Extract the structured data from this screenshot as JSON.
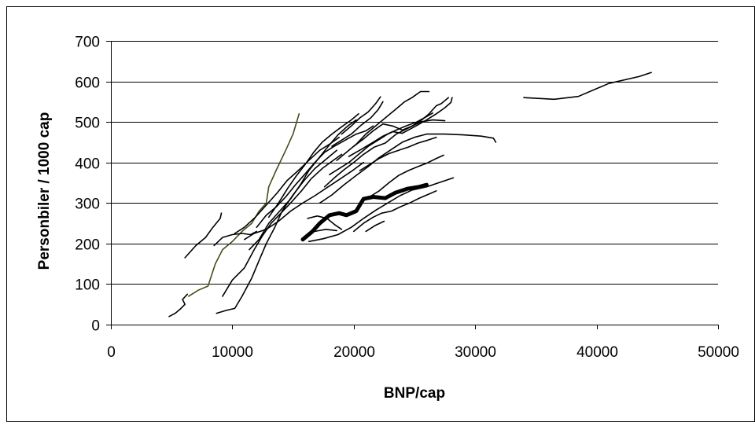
{
  "chart_data": {
    "type": "line",
    "xlabel": "BNP/cap",
    "ylabel": "Personbiler / 1000 cap",
    "xlim": [
      0,
      50000
    ],
    "ylim": [
      0,
      700
    ],
    "xticks": [
      "0",
      "10000",
      "20000",
      "30000",
      "40000",
      "50000"
    ],
    "yticks": [
      "0",
      "100",
      "200",
      "300",
      "400",
      "500",
      "600",
      "700"
    ],
    "grid": "horizontal",
    "legend": "none",
    "colors": {
      "default": "#000000",
      "olive": "#4a4a1a",
      "gridline": "#000000"
    },
    "series": [
      {
        "values": [
          [
            34000,
            560
          ],
          [
            36500,
            556
          ],
          [
            38500,
            563
          ],
          [
            41000,
            595
          ],
          [
            43500,
            612
          ],
          [
            44500,
            622
          ]
        ]
      },
      {
        "color": "olive",
        "values": [
          [
            6400,
            70
          ],
          [
            7200,
            85
          ],
          [
            8000,
            95
          ],
          [
            8600,
            150
          ],
          [
            9200,
            185
          ],
          [
            10000,
            205
          ],
          [
            10800,
            230
          ],
          [
            11600,
            250
          ],
          [
            12200,
            280
          ],
          [
            12800,
            300
          ],
          [
            13000,
            340
          ],
          [
            13600,
            380
          ],
          [
            14400,
            430
          ],
          [
            15000,
            470
          ],
          [
            15500,
            520
          ]
        ]
      },
      {
        "width": 5,
        "values": [
          [
            15800,
            210
          ],
          [
            16600,
            230
          ],
          [
            17200,
            250
          ],
          [
            18000,
            270
          ],
          [
            18800,
            275
          ],
          [
            19400,
            270
          ],
          [
            20200,
            280
          ],
          [
            20800,
            310
          ],
          [
            21600,
            315
          ],
          [
            22600,
            312
          ],
          [
            23400,
            325
          ],
          [
            24400,
            335
          ],
          [
            25400,
            340
          ],
          [
            26000,
            345
          ]
        ]
      },
      {
        "values": [
          [
            4800,
            20
          ],
          [
            5300,
            28
          ],
          [
            5700,
            38
          ],
          [
            6100,
            50
          ],
          [
            5900,
            62
          ],
          [
            6300,
            75
          ]
        ]
      },
      {
        "values": [
          [
            6100,
            165
          ],
          [
            7000,
            195
          ],
          [
            7800,
            215
          ],
          [
            8400,
            240
          ],
          [
            9000,
            262
          ],
          [
            9100,
            275
          ]
        ]
      },
      {
        "values": [
          [
            8500,
            195
          ],
          [
            9200,
            215
          ],
          [
            10000,
            222
          ],
          [
            10800,
            225
          ],
          [
            11500,
            222
          ],
          [
            12000,
            230
          ]
        ]
      },
      {
        "values": [
          [
            8700,
            28
          ],
          [
            9500,
            35
          ],
          [
            10200,
            40
          ],
          [
            10800,
            70
          ],
          [
            11600,
            115
          ],
          [
            12300,
            165
          ],
          [
            12800,
            200
          ],
          [
            13500,
            240
          ],
          [
            14100,
            280
          ],
          [
            15000,
            320
          ],
          [
            15900,
            355
          ],
          [
            16800,
            385
          ],
          [
            17800,
            410
          ],
          [
            18600,
            430
          ]
        ]
      },
      {
        "values": [
          [
            9200,
            70
          ],
          [
            10000,
            110
          ],
          [
            11000,
            140
          ],
          [
            11800,
            185
          ],
          [
            12500,
            220
          ],
          [
            13200,
            250
          ],
          [
            14000,
            275
          ],
          [
            14800,
            300
          ],
          [
            15700,
            330
          ],
          [
            16500,
            360
          ],
          [
            17400,
            385
          ],
          [
            18300,
            405
          ],
          [
            19000,
            420
          ]
        ]
      },
      {
        "values": [
          [
            10200,
            225
          ],
          [
            11000,
            240
          ],
          [
            11900,
            265
          ],
          [
            12800,
            295
          ],
          [
            13700,
            325
          ],
          [
            14500,
            355
          ],
          [
            15500,
            382
          ],
          [
            16300,
            405
          ],
          [
            17200,
            430
          ],
          [
            18000,
            445
          ],
          [
            18800,
            462
          ]
        ]
      },
      {
        "values": [
          [
            11000,
            210
          ],
          [
            11800,
            225
          ],
          [
            12800,
            235
          ],
          [
            13800,
            255
          ],
          [
            14800,
            280
          ],
          [
            15800,
            300
          ],
          [
            16800,
            318
          ],
          [
            17800,
            338
          ],
          [
            18800,
            358
          ],
          [
            19800,
            378
          ],
          [
            20800,
            400
          ]
        ]
      },
      {
        "values": [
          [
            11400,
            185
          ],
          [
            12200,
            210
          ],
          [
            13000,
            250
          ],
          [
            13900,
            280
          ],
          [
            14800,
            310
          ],
          [
            15600,
            345
          ],
          [
            16300,
            380
          ],
          [
            17100,
            410
          ],
          [
            17900,
            440
          ],
          [
            18700,
            468
          ],
          [
            19500,
            490
          ],
          [
            20200,
            505
          ]
        ]
      },
      {
        "values": [
          [
            12000,
            240
          ],
          [
            12800,
            270
          ],
          [
            13600,
            290
          ],
          [
            14400,
            315
          ],
          [
            15200,
            345
          ],
          [
            16000,
            372
          ],
          [
            16800,
            400
          ],
          [
            17600,
            425
          ],
          [
            18400,
            440
          ],
          [
            19300,
            455
          ],
          [
            20200,
            470
          ],
          [
            21000,
            478
          ],
          [
            21600,
            490
          ]
        ]
      },
      {
        "values": [
          [
            13000,
            265
          ],
          [
            13800,
            300
          ],
          [
            14600,
            338
          ],
          [
            15300,
            368
          ],
          [
            16000,
            395
          ],
          [
            16700,
            425
          ],
          [
            17400,
            450
          ],
          [
            18200,
            470
          ],
          [
            19000,
            488
          ],
          [
            19800,
            505
          ],
          [
            20400,
            520
          ]
        ]
      },
      {
        "values": [
          [
            16200,
            262
          ],
          [
            17000,
            268
          ],
          [
            17800,
            262
          ],
          [
            18500,
            245
          ],
          [
            19000,
            235
          ]
        ]
      },
      {
        "values": [
          [
            16300,
            205
          ],
          [
            17500,
            212
          ],
          [
            18700,
            222
          ],
          [
            19800,
            240
          ],
          [
            20800,
            262
          ],
          [
            21800,
            282
          ],
          [
            22800,
            300
          ],
          [
            23800,
            318
          ],
          [
            24800,
            332
          ],
          [
            26000,
            340
          ],
          [
            27000,
            350
          ],
          [
            28200,
            362
          ]
        ]
      },
      {
        "values": [
          [
            16800,
            230
          ],
          [
            17700,
            235
          ],
          [
            18600,
            232
          ]
        ]
      },
      {
        "values": [
          [
            17200,
            300
          ],
          [
            18200,
            320
          ],
          [
            19200,
            345
          ],
          [
            20200,
            368
          ],
          [
            21200,
            390
          ],
          [
            22000,
            410
          ],
          [
            23000,
            430
          ],
          [
            24000,
            450
          ],
          [
            25000,
            462
          ],
          [
            26000,
            470
          ],
          [
            27500,
            470
          ],
          [
            29000,
            468
          ],
          [
            30500,
            465
          ],
          [
            31500,
            460
          ],
          [
            31700,
            450
          ]
        ]
      },
      {
        "values": [
          [
            17600,
            340
          ],
          [
            18400,
            362
          ],
          [
            19200,
            382
          ],
          [
            20000,
            400
          ],
          [
            20800,
            420
          ],
          [
            21700,
            438
          ],
          [
            22600,
            448
          ],
          [
            23500,
            470
          ],
          [
            24500,
            485
          ],
          [
            25500,
            500
          ],
          [
            26500,
            505
          ],
          [
            27500,
            503
          ]
        ]
      },
      {
        "values": [
          [
            18000,
            370
          ],
          [
            18800,
            385
          ],
          [
            19600,
            400
          ],
          [
            20400,
            420
          ],
          [
            21200,
            440
          ],
          [
            22000,
            455
          ],
          [
            22800,
            470
          ],
          [
            23500,
            480
          ],
          [
            24300,
            490
          ],
          [
            25200,
            500
          ],
          [
            25800,
            510
          ],
          [
            26500,
            522
          ]
        ]
      },
      {
        "values": [
          [
            18600,
            405
          ],
          [
            19400,
            425
          ],
          [
            20200,
            445
          ],
          [
            21000,
            470
          ],
          [
            21800,
            490
          ],
          [
            22600,
            510
          ],
          [
            23400,
            530
          ],
          [
            24200,
            550
          ],
          [
            24800,
            560
          ],
          [
            25500,
            575
          ],
          [
            26200,
            575
          ]
        ]
      },
      {
        "values": [
          [
            19600,
            415
          ],
          [
            20600,
            432
          ],
          [
            21600,
            450
          ],
          [
            22400,
            465
          ],
          [
            23200,
            476
          ],
          [
            24000,
            472
          ],
          [
            25000,
            488
          ],
          [
            26000,
            505
          ],
          [
            26800,
            520
          ],
          [
            27500,
            535
          ],
          [
            28000,
            548
          ],
          [
            28100,
            560
          ]
        ]
      },
      {
        "values": [
          [
            20000,
            440
          ],
          [
            20800,
            458
          ],
          [
            21600,
            478
          ],
          [
            22400,
            495
          ],
          [
            23200,
            490
          ],
          [
            24000,
            480
          ],
          [
            24800,
            490
          ],
          [
            25600,
            505
          ],
          [
            26200,
            520
          ],
          [
            26800,
            540
          ],
          [
            27200,
            545
          ],
          [
            27800,
            560
          ]
        ]
      },
      {
        "values": [
          [
            19000,
            470
          ],
          [
            19800,
            490
          ],
          [
            20500,
            510
          ],
          [
            21200,
            525
          ],
          [
            21800,
            545
          ],
          [
            22200,
            562
          ]
        ]
      },
      {
        "values": [
          [
            18200,
            440
          ],
          [
            19000,
            455
          ],
          [
            19800,
            470
          ],
          [
            20600,
            492
          ],
          [
            21400,
            510
          ],
          [
            22000,
            530
          ],
          [
            22400,
            550
          ]
        ]
      },
      {
        "values": [
          [
            20500,
            300
          ],
          [
            21300,
            315
          ],
          [
            22100,
            330
          ],
          [
            22900,
            350
          ],
          [
            23700,
            368
          ],
          [
            24500,
            380
          ],
          [
            25300,
            390
          ],
          [
            26000,
            398
          ],
          [
            26800,
            410
          ],
          [
            27400,
            418
          ]
        ]
      },
      {
        "values": [
          [
            20000,
            230
          ],
          [
            20800,
            250
          ],
          [
            21600,
            265
          ],
          [
            22300,
            275
          ],
          [
            23100,
            280
          ],
          [
            23800,
            290
          ],
          [
            24600,
            300
          ],
          [
            25400,
            312
          ],
          [
            26200,
            322
          ],
          [
            26800,
            330
          ]
        ]
      },
      {
        "values": [
          [
            20500,
            380
          ],
          [
            21300,
            395
          ],
          [
            22100,
            410
          ],
          [
            22900,
            422
          ],
          [
            23700,
            430
          ],
          [
            24500,
            438
          ],
          [
            25300,
            448
          ],
          [
            26100,
            455
          ],
          [
            26800,
            462
          ]
        ]
      },
      {
        "values": [
          [
            21000,
            230
          ],
          [
            21800,
            245
          ],
          [
            22500,
            255
          ]
        ]
      }
    ]
  }
}
